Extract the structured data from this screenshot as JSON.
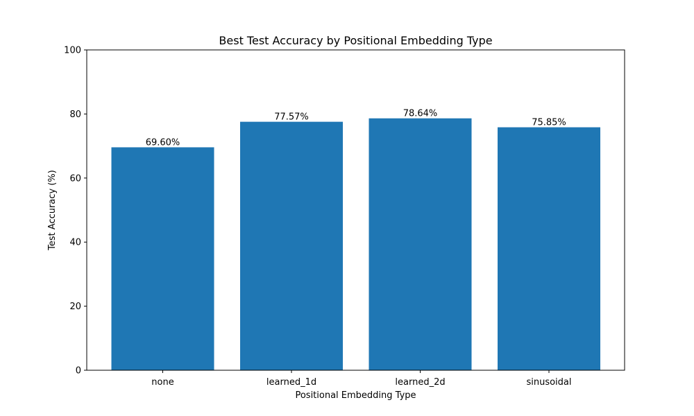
{
  "chart_data": {
    "type": "bar",
    "title": "Best Test Accuracy by Positional Embedding Type",
    "xlabel": "Positional Embedding Type",
    "ylabel": "Test Accuracy (%)",
    "categories": [
      "none",
      "learned_1d",
      "learned_2d",
      "sinusoidal"
    ],
    "values": [
      69.6,
      77.57,
      78.64,
      75.85
    ],
    "data_labels": [
      "69.60%",
      "77.57%",
      "78.64%",
      "75.85%"
    ],
    "ylim": [
      0,
      100
    ],
    "yticks": [
      0,
      20,
      40,
      60,
      80,
      100
    ],
    "bar_color": "#1f77b4",
    "grid": false,
    "legend": "none"
  }
}
